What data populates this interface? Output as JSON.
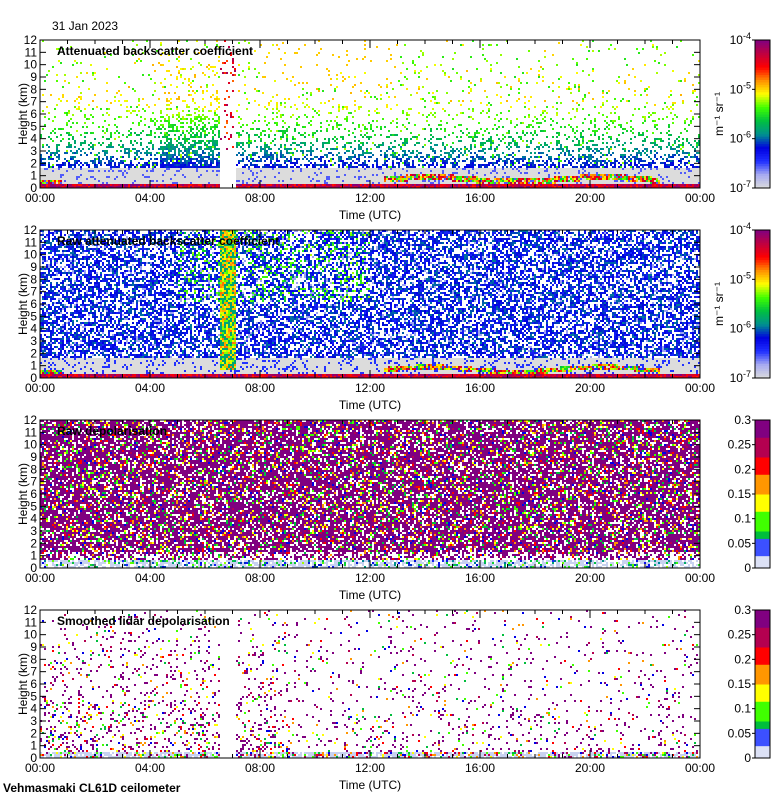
{
  "header": {
    "date": "31 Jan 2023"
  },
  "footer": {
    "instrument": "Vehmasmaki CL61D ceilometer"
  },
  "colors": {
    "colormap": [
      "#dcdcdc",
      "#a8acf0",
      "#2030ff",
      "#0000e0",
      "#009090",
      "#00c040",
      "#40ff00",
      "#ffff00",
      "#ff9000",
      "#ff0000",
      "#c00040",
      "#800080"
    ]
  },
  "chart_data": [
    {
      "type": "heatmap",
      "kind": "backscatter",
      "title": "Attenuated backscatter coefficient",
      "xlabel": "Time (UTC)",
      "ylabel": "Height (km)",
      "xticks": [
        "00:00",
        "04:00",
        "08:00",
        "12:00",
        "16:00",
        "20:00",
        "00:00"
      ],
      "xlim_hours": [
        0,
        24
      ],
      "yticks": [
        "0",
        "1",
        "2",
        "3",
        "4",
        "5",
        "6",
        "7",
        "8",
        "9",
        "10",
        "11",
        "12"
      ],
      "ylim_km": [
        0,
        12
      ],
      "colorbar": {
        "scale": "log",
        "range": [
          1e-07,
          0.0001
        ],
        "ticks": [
          {
            "base": "10",
            "exp": "-7"
          },
          {
            "base": "10",
            "exp": "-6"
          },
          {
            "base": "10",
            "exp": "-5"
          },
          {
            "base": "10",
            "exp": "-4"
          }
        ],
        "unit": "m⁻¹ sr⁻¹"
      }
    },
    {
      "type": "heatmap",
      "kind": "raw",
      "title": "Raw attenuated backscatter coefficient",
      "xlabel": "Time (UTC)",
      "ylabel": "Height (km)",
      "xticks": [
        "00:00",
        "04:00",
        "08:00",
        "12:00",
        "16:00",
        "20:00",
        "00:00"
      ],
      "xlim_hours": [
        0,
        24
      ],
      "yticks": [
        "0",
        "1",
        "2",
        "3",
        "4",
        "5",
        "6",
        "7",
        "8",
        "9",
        "10",
        "11",
        "12"
      ],
      "ylim_km": [
        0,
        12
      ],
      "colorbar": {
        "scale": "log",
        "range": [
          1e-07,
          0.0001
        ],
        "ticks": [
          {
            "base": "10",
            "exp": "-7"
          },
          {
            "base": "10",
            "exp": "-6"
          },
          {
            "base": "10",
            "exp": "-5"
          },
          {
            "base": "10",
            "exp": "-4"
          }
        ],
        "unit": "m⁻¹ sr⁻¹"
      }
    },
    {
      "type": "heatmap",
      "kind": "depol",
      "title": "Raw depolarisation",
      "xlabel": "Time (UTC)",
      "ylabel": "Height (km)",
      "xticks": [
        "00:00",
        "04:00",
        "08:00",
        "12:00",
        "16:00",
        "20:00",
        "00:00"
      ],
      "xlim_hours": [
        0,
        24
      ],
      "yticks": [
        "0",
        "1",
        "2",
        "3",
        "4",
        "5",
        "6",
        "7",
        "8",
        "9",
        "10",
        "11",
        "12"
      ],
      "ylim_km": [
        0,
        12
      ],
      "colorbar": {
        "scale": "linear",
        "range": [
          0,
          0.3
        ],
        "ticks": [
          "0",
          "0.05",
          "0.1",
          "0.15",
          "0.2",
          "0.25",
          "0.3"
        ],
        "unit": ""
      }
    },
    {
      "type": "heatmap",
      "kind": "smooth",
      "title": "Smoothed lidar depolarisation",
      "xlabel": "Time (UTC)",
      "ylabel": "Height (km)",
      "xticks": [
        "00:00",
        "04:00",
        "08:00",
        "12:00",
        "16:00",
        "20:00",
        "00:00"
      ],
      "xlim_hours": [
        0,
        24
      ],
      "yticks": [
        "0",
        "1",
        "2",
        "3",
        "4",
        "5",
        "6",
        "7",
        "8",
        "9",
        "10",
        "11",
        "12"
      ],
      "ylim_km": [
        0,
        12
      ],
      "colorbar": {
        "scale": "linear",
        "range": [
          0,
          0.3
        ],
        "ticks": [
          "0",
          "0.05",
          "0.1",
          "0.15",
          "0.2",
          "0.25",
          "0.3"
        ],
        "unit": ""
      }
    }
  ]
}
